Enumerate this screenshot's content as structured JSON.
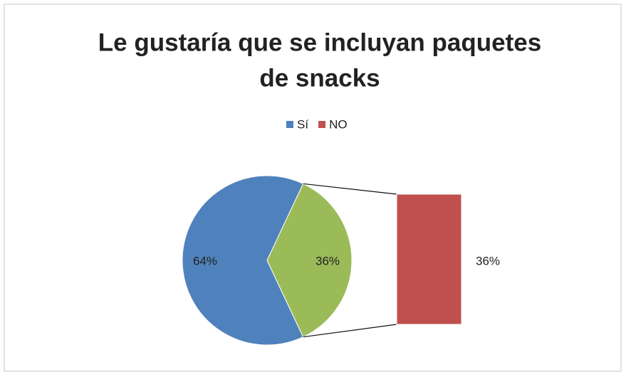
{
  "chart_data": {
    "type": "bar-of-pie",
    "title": [
      "Le gustaría que se incluyan paquetes",
      "de snacks"
    ],
    "categories": [
      "Sí",
      "NO"
    ],
    "values": [
      64,
      36
    ],
    "value_labels": [
      "64%",
      "36%"
    ],
    "colors": [
      "#4f81bd",
      "#c0504d"
    ],
    "other": {
      "value": 36,
      "label": "36%",
      "color": "#9bbb59"
    },
    "legend": "top"
  }
}
